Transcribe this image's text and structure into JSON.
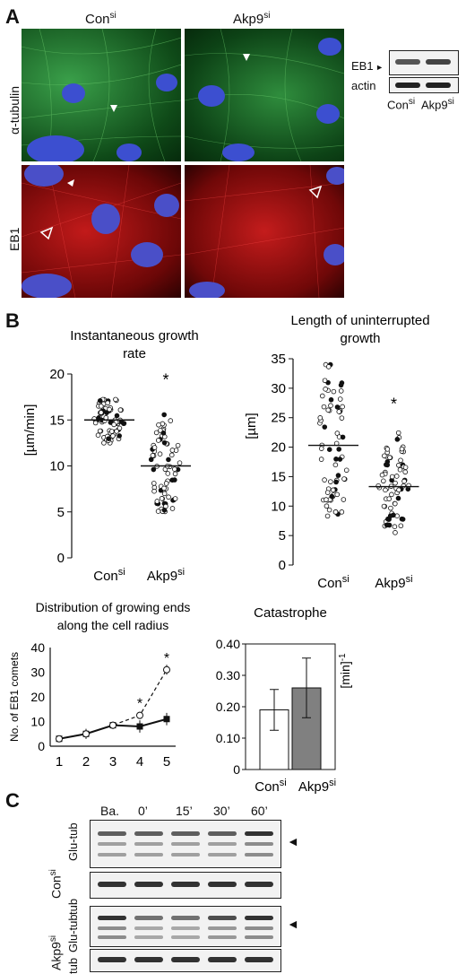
{
  "panels": {
    "A": "A",
    "B": "B",
    "C": "C"
  },
  "panelA": {
    "col1": "Con",
    "col1_sup": "si",
    "col2": "Akp9",
    "col2_sup": "si",
    "row1": "α-tubulin",
    "row2": "EB1",
    "blot": {
      "band1": "EB1",
      "band2": "actin",
      "lane1": "Con",
      "lane1_sup": "si",
      "lane2": "Akp9",
      "lane2_sup": "si"
    }
  },
  "chart_data": [
    {
      "type": "scatter",
      "title": "Instantaneous growth rate",
      "ylabel": "[µm/min]",
      "ylim": [
        0,
        20
      ],
      "yticks": [
        0,
        5,
        10,
        15,
        20
      ],
      "categories": [
        "Con^si",
        "Akp9^si"
      ],
      "means": [
        15.0,
        10.0
      ],
      "significance": [
        "",
        "*"
      ],
      "ranges": [
        [
          12.5,
          19.0
        ],
        [
          3.8,
          18.0
        ]
      ],
      "outliers": [
        null,
        18.3
      ]
    },
    {
      "type": "scatter",
      "title": "Length of uninterrupted growth",
      "ylabel": "[µm]",
      "ylim": [
        0,
        35
      ],
      "yticks": [
        0,
        5,
        10,
        15,
        20,
        25,
        30,
        35
      ],
      "categories": [
        "Con^si",
        "Akp9^si"
      ],
      "means": [
        20.3,
        13.3
      ],
      "significance": [
        "",
        "*"
      ],
      "ranges": [
        [
          1.5,
          34
        ],
        [
          5.5,
          25.2
        ]
      ]
    },
    {
      "type": "line",
      "title": "Distribution of growing ends along the cell radius",
      "ylabel": "No. of EB1 comets",
      "ylim": [
        0,
        40
      ],
      "yticks": [
        0,
        10,
        20,
        30,
        40
      ],
      "x": [
        1,
        2,
        3,
        4,
        5
      ],
      "series": [
        {
          "values": [
            3,
            5,
            8.5,
            8,
            11
          ],
          "errors": [
            1,
            2,
            1.5,
            2.5,
            2.5
          ],
          "marker": "filled-square",
          "style": "solid"
        },
        {
          "values": [
            3,
            5,
            8.5,
            12.5,
            31
          ],
          "errors": [
            1,
            2,
            1.5,
            1.5,
            2
          ],
          "marker": "open-circle",
          "style": "dashed"
        }
      ],
      "significance": {
        "4": "*",
        "5": "*"
      }
    },
    {
      "type": "bar",
      "title": "Catastrophe",
      "ylabel": "[min]",
      "ylabel_sup": "-1",
      "ylim": [
        0,
        0.4
      ],
      "yticks": [
        "0",
        "0.10",
        "0.20",
        "0.30",
        "0.40"
      ],
      "categories": [
        "Con^si",
        "Akp9^si"
      ],
      "values": [
        0.19,
        0.26
      ],
      "errors": [
        0.065,
        0.095
      ],
      "colors": [
        "#ffffff",
        "#808080"
      ]
    }
  ],
  "panelB_labels": {
    "con": "Con",
    "akp": "Akp9",
    "sup": "si"
  },
  "panelC": {
    "lanes": [
      "Ba.",
      "0’",
      "15’",
      "30’",
      "60’"
    ],
    "group1": {
      "name": "Con",
      "sup": "si",
      "blot1": "Glu-tub",
      "blot2": "tub"
    },
    "group2": {
      "name": "Akp9",
      "sup": "si",
      "blot1": "Glu-tub",
      "blot2": "tub"
    }
  }
}
